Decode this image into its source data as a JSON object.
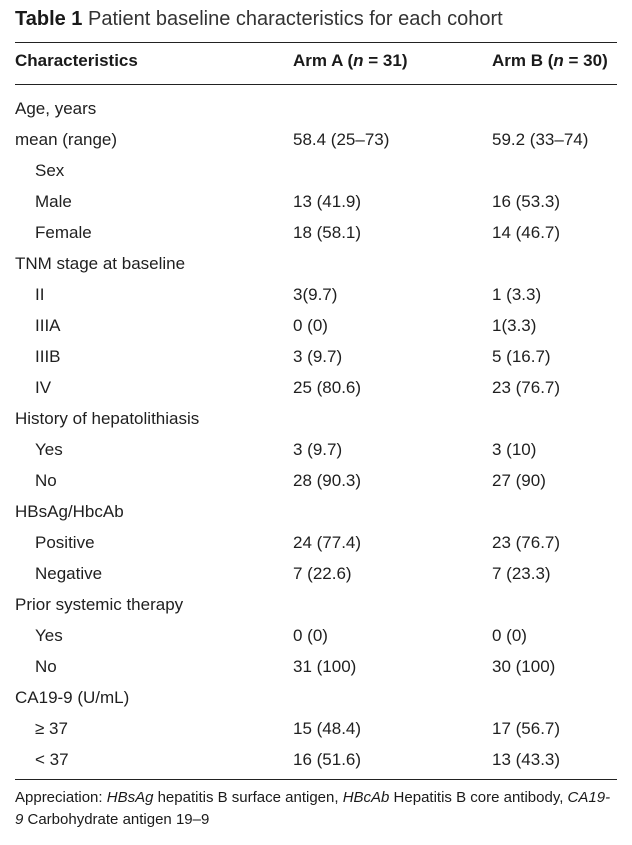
{
  "caption": {
    "label": "Table 1",
    "text": "Patient baseline characteristics for each cohort"
  },
  "header": {
    "col1": "Characteristics",
    "arm_a": {
      "name": "Arm A (",
      "n": "n",
      "eq": " = 31)"
    },
    "arm_b": {
      "name": "Arm B (",
      "n": "n",
      "eq": " = 30)"
    }
  },
  "rows": [
    {
      "label": "Age, years",
      "a": "",
      "b": "",
      "indent": false
    },
    {
      "label": "mean (range)",
      "a": "58.4 (25–73)",
      "b": "59.2 (33–74)",
      "indent": false
    },
    {
      "label": "Sex",
      "a": "",
      "b": "",
      "indent": true
    },
    {
      "label": "Male",
      "a": "13 (41.9)",
      "b": "16 (53.3)",
      "indent": true
    },
    {
      "label": "Female",
      "a": "18 (58.1)",
      "b": "14 (46.7)",
      "indent": true
    },
    {
      "label": "TNM stage at baseline",
      "a": "",
      "b": "",
      "indent": false
    },
    {
      "label": "II",
      "a": "3(9.7)",
      "b": "1 (3.3)",
      "indent": true
    },
    {
      "label": "IIIA",
      "a": "0 (0)",
      "b": "1(3.3)",
      "indent": true
    },
    {
      "label": "IIIB",
      "a": "3 (9.7)",
      "b": "5 (16.7)",
      "indent": true
    },
    {
      "label": "IV",
      "a": "25 (80.6)",
      "b": "23 (76.7)",
      "indent": true
    },
    {
      "label": "History of hepatolithiasis",
      "a": "",
      "b": "",
      "indent": false
    },
    {
      "label": "Yes",
      "a": "3 (9.7)",
      "b": "3 (10)",
      "indent": true
    },
    {
      "label": "No",
      "a": "28 (90.3)",
      "b": "27 (90)",
      "indent": true
    },
    {
      "label": "HBsAg/HbcAb",
      "a": "",
      "b": "",
      "indent": false
    },
    {
      "label": "Positive",
      "a": "24 (77.4)",
      "b": "23 (76.7)",
      "indent": true
    },
    {
      "label": "Negative",
      "a": "7 (22.6)",
      "b": "7 (23.3)",
      "indent": true
    },
    {
      "label": "Prior systemic therapy",
      "a": "",
      "b": "",
      "indent": false
    },
    {
      "label": "Yes",
      "a": "0 (0)",
      "b": "0 (0)",
      "indent": true
    },
    {
      "label": "No",
      "a": "31 (100)",
      "b": "30 (100)",
      "indent": true
    },
    {
      "label": "CA19-9 (U/mL)",
      "a": "",
      "b": "",
      "indent": false
    },
    {
      "label": "≥ 37",
      "a": "15 (48.4)",
      "b": "17 (56.7)",
      "indent": true
    },
    {
      "label": "< 37",
      "a": "16 (51.6)",
      "b": "13 (43.3)",
      "indent": true
    }
  ],
  "footnote": {
    "prefix": "Appreciation: ",
    "abbr1": "HBsAg",
    "def1": " hepatitis B surface antigen, ",
    "abbr2": "HBcAb",
    "def2": " Hepatitis B core antibody, ",
    "abbr3": "CA19-9",
    "def3": " Carbohydrate antigen 19–9"
  }
}
